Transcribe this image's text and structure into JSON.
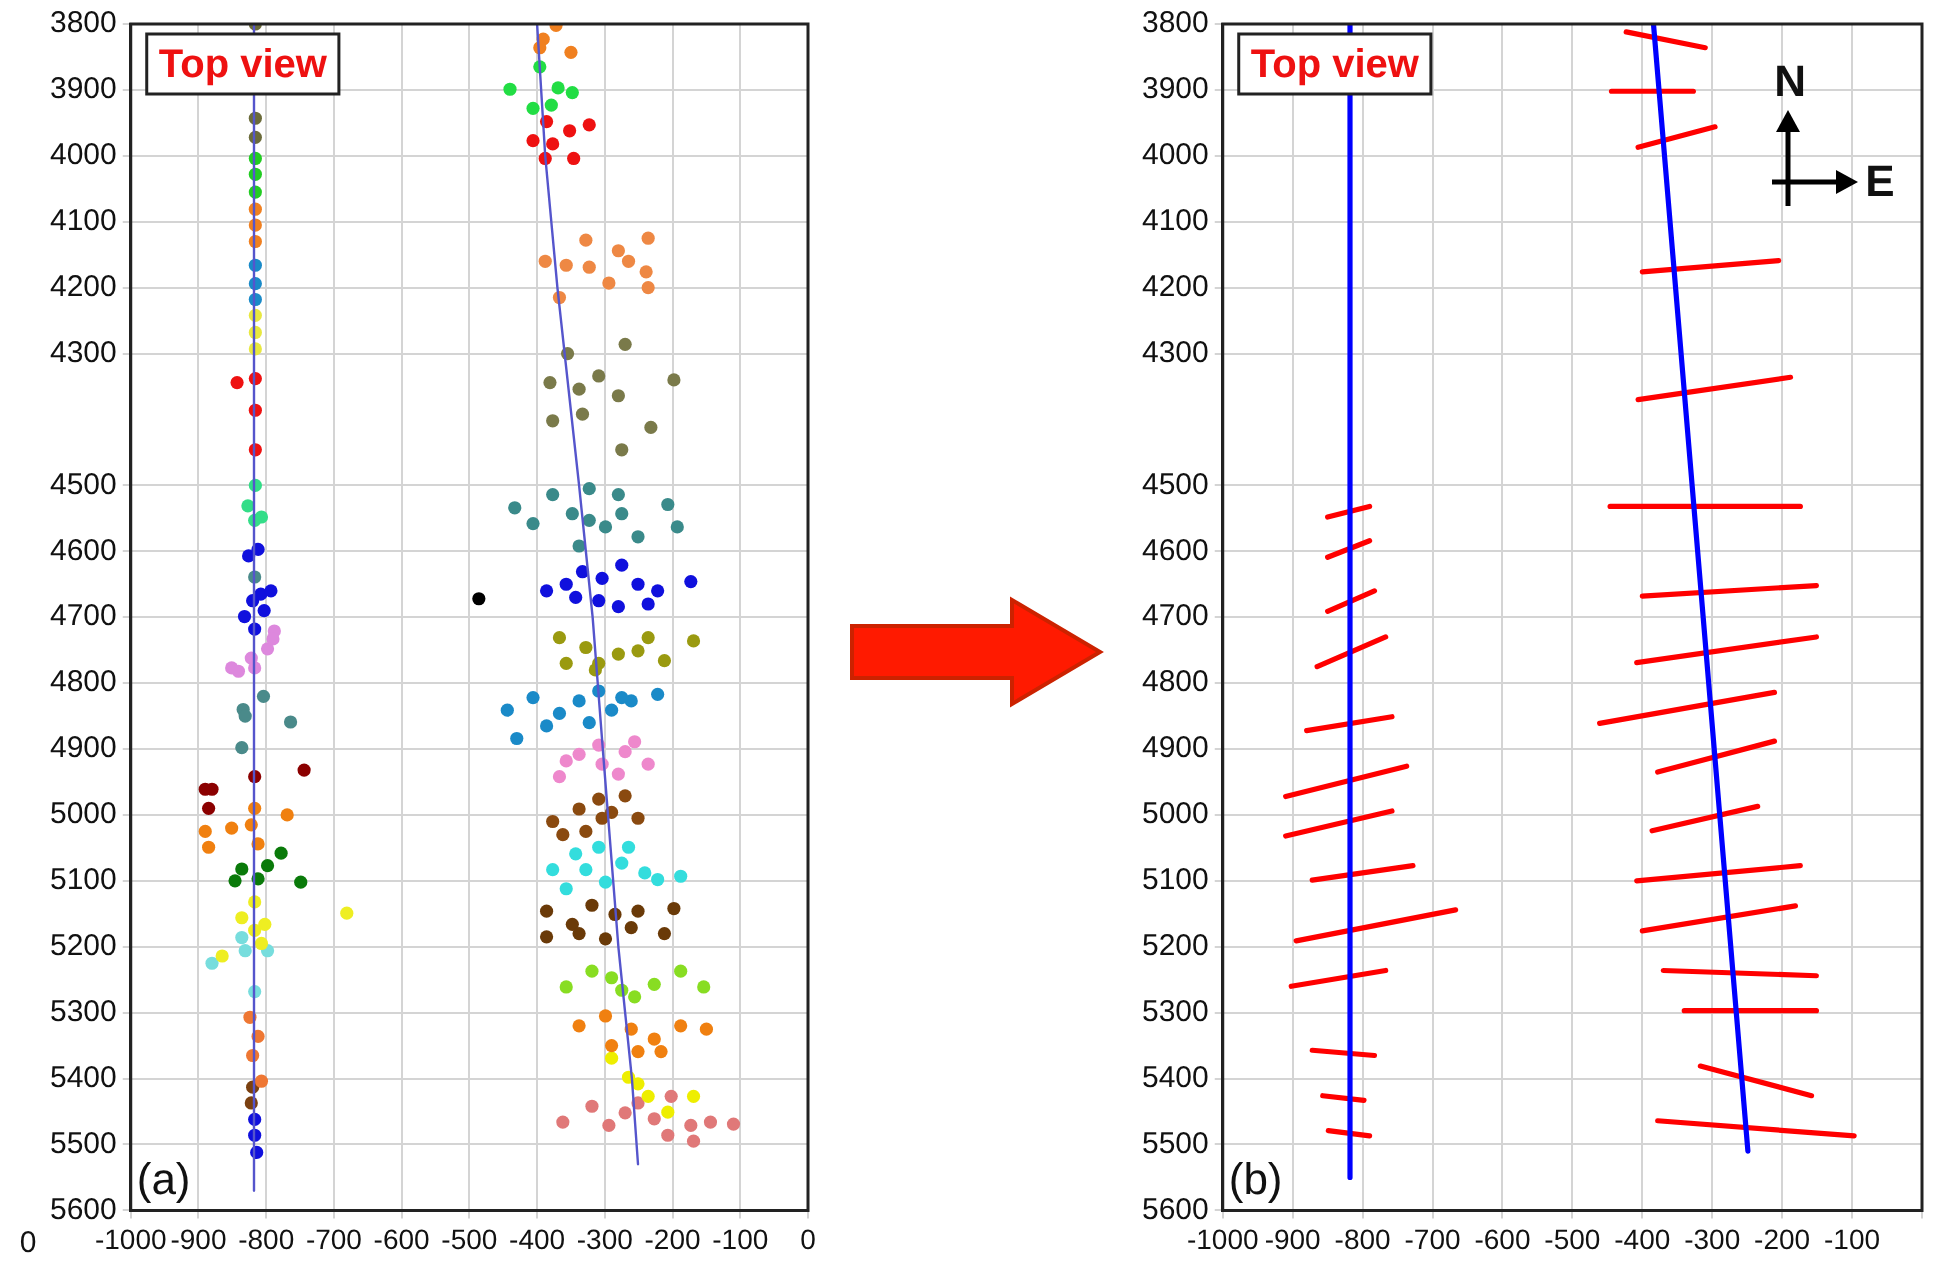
{
  "chart_data": [
    {
      "type": "scatter",
      "annotations": [
        "Top view",
        "(a)",
        "0"
      ],
      "xlim": [
        -1000,
        0
      ],
      "xticks": [
        -1000,
        -900,
        -800,
        -700,
        -600,
        -500,
        -400,
        -300,
        -200,
        -100,
        0
      ],
      "ylim": [
        5600,
        3800
      ],
      "yticks": [
        3800,
        3900,
        4000,
        4100,
        4200,
        4300,
        4500,
        4600,
        4700,
        4800,
        4900,
        5000,
        5100,
        5200,
        5300,
        5400,
        5500,
        5600
      ],
      "grid": true,
      "legend": false,
      "marker": "circle",
      "series": [
        {
          "type": "line",
          "marker": "none",
          "color": "#5555cc",
          "x": [
            -818,
            -818
          ],
          "values": [
            3800,
            5570
          ]
        },
        {
          "type": "line",
          "marker": "none",
          "color": "#5555cc",
          "x": [
            -400,
            -388,
            -370,
            -338,
            -318,
            -303,
            -280,
            -260,
            -251
          ],
          "values": [
            3800,
            4000,
            4200,
            4500,
            4700,
            4900,
            5200,
            5400,
            5530
          ]
        },
        {
          "color": "#6b6b3a",
          "x": [
            -816,
            -816,
            -816
          ],
          "values": [
            3800,
            3943,
            3972
          ]
        },
        {
          "color": "#22cc22",
          "x": [
            -816,
            -816,
            -816
          ],
          "values": [
            4004,
            4028,
            4055
          ]
        },
        {
          "color": "#f08020",
          "x": [
            -816,
            -816,
            -816
          ],
          "values": [
            4081,
            4105,
            4130
          ]
        },
        {
          "color": "#1a8ac8",
          "x": [
            -816,
            -816,
            -816
          ],
          "values": [
            4166,
            4194,
            4218
          ]
        },
        {
          "color": "#e8e840",
          "x": [
            -816,
            -816,
            -816
          ],
          "values": [
            4242,
            4268,
            4293
          ]
        },
        {
          "color": "#ee1111",
          "x": [
            -816,
            -816,
            -816,
            -843
          ],
          "values": [
            4338,
            4386,
            4446,
            4344
          ]
        },
        {
          "color": "#33dd88",
          "x": [
            -816,
            -827,
            -807,
            -817
          ],
          "values": [
            4500,
            4531,
            4548,
            4553
          ]
        },
        {
          "color": "#1010dd",
          "x": [
            -826,
            -812,
            -820,
            -808,
            -793,
            -832,
            -803,
            -817
          ],
          "values": [
            4607,
            4597,
            4675,
            4665,
            4660,
            4699,
            4690,
            4718
          ]
        },
        {
          "color": "#dd88dd",
          "x": [
            -788,
            -822,
            -851,
            -798,
            -817,
            -841,
            -790
          ],
          "values": [
            4721,
            4762,
            4777,
            4748,
            4777,
            4782,
            4733
          ]
        },
        {
          "color": "#4a8a8a",
          "x": [
            -834,
            -836,
            -804,
            -764,
            -831,
            -817
          ],
          "values": [
            4840,
            4898,
            4820,
            4859,
            4850,
            4639
          ]
        },
        {
          "color": "#8b0000",
          "x": [
            -890,
            -880,
            -885,
            -817,
            -744
          ],
          "values": [
            4961,
            4961,
            4990,
            4942,
            4932
          ]
        },
        {
          "color": "#f08010",
          "x": [
            -851,
            -890,
            -885,
            -822,
            -769,
            -812,
            -817
          ],
          "values": [
            5020,
            5025,
            5049,
            5015,
            5000,
            5044,
            4990
          ]
        },
        {
          "color": "#0a7a0a",
          "x": [
            -846,
            -812,
            -778,
            -749,
            -836,
            -798
          ],
          "values": [
            5100,
            5097,
            5058,
            5102,
            5082,
            5077
          ]
        },
        {
          "color": "#eeee22",
          "x": [
            -681,
            -817,
            -836,
            -817,
            -807,
            -865,
            -802
          ],
          "values": [
            5149,
            5132,
            5156,
            5175,
            5195,
            5214,
            5166
          ]
        },
        {
          "color": "#77dddd",
          "x": [
            -880,
            -831,
            -798,
            -817,
            -836
          ],
          "values": [
            5225,
            5206,
            5206,
            5268,
            5186
          ]
        },
        {
          "color": "#ee7733",
          "x": [
            -812,
            -820,
            -807,
            -824
          ],
          "values": [
            5336,
            5365,
            5404,
            5307
          ]
        },
        {
          "color": "#7a4010",
          "x": [
            -820,
            -822
          ],
          "values": [
            5413,
            5437
          ]
        },
        {
          "color": "#1010dd",
          "x": [
            -817,
            -817,
            -814
          ],
          "values": [
            5462,
            5486,
            5512
          ]
        },
        {
          "color": "#f08020",
          "x": [
            -372,
            -391,
            -350,
            -396
          ],
          "values": [
            3802,
            3823,
            3843,
            3836
          ]
        },
        {
          "color": "#22dd44",
          "x": [
            -440,
            -406,
            -369,
            -379,
            -396,
            -348
          ],
          "values": [
            3899,
            3928,
            3897,
            3923,
            3865,
            3904
          ]
        },
        {
          "color": "#ee1111",
          "x": [
            -377,
            -406,
            -352,
            -323,
            -386,
            -346,
            -388
          ],
          "values": [
            3982,
            3977,
            3962,
            3953,
            3948,
            4004,
            4004
          ]
        },
        {
          "color": "#ee8844",
          "x": [
            -357,
            -323,
            -280,
            -236,
            -367,
            -328,
            -388,
            -265,
            -239,
            -294,
            -236
          ],
          "values": [
            4166,
            4169,
            4144,
            4125,
            4215,
            4128,
            4160,
            4160,
            4176,
            4193,
            4200
          ]
        },
        {
          "color": "#7a7a4a",
          "x": [
            -355,
            -381,
            -338,
            -309,
            -275,
            -270,
            -198,
            -232,
            -377,
            -280,
            -333
          ],
          "values": [
            4300,
            4344,
            4354,
            4334,
            4446,
            4286,
            4340,
            4412,
            4402,
            4364,
            4392
          ]
        },
        {
          "color": "#3a8a8a",
          "x": [
            -433,
            -377,
            -348,
            -323,
            -299,
            -275,
            -338,
            -251,
            -207,
            -193,
            -406,
            -280,
            -323
          ],
          "values": [
            4534,
            4514,
            4543,
            4553,
            4563,
            4543,
            4592,
            4578,
            4529,
            4563,
            4558,
            4514,
            4505
          ]
        },
        {
          "color": "#1010dd",
          "x": [
            -386,
            -357,
            -333,
            -309,
            -275,
            -251,
            -222,
            -173,
            -280,
            -343,
            -304,
            -236
          ],
          "values": [
            4660,
            4650,
            4631,
            4675,
            4621,
            4650,
            4660,
            4646,
            4684,
            4670,
            4641,
            4680
          ]
        },
        {
          "color": "#000000",
          "x": [
            -486
          ],
          "values": [
            4672
          ]
        },
        {
          "color": "#9a9a10",
          "x": [
            -367,
            -328,
            -309,
            -280,
            -251,
            -212,
            -169,
            -357,
            -314,
            -236
          ],
          "values": [
            4731,
            4746,
            4770,
            4756,
            4751,
            4766,
            4736,
            4770,
            4780,
            4731
          ]
        },
        {
          "color": "#1a8ac8",
          "x": [
            -444,
            -406,
            -367,
            -338,
            -309,
            -290,
            -261,
            -222,
            -386,
            -323,
            -275,
            -430
          ],
          "values": [
            4841,
            4822,
            4846,
            4827,
            4812,
            4841,
            4827,
            4817,
            4865,
            4860,
            4822,
            4884
          ]
        },
        {
          "color": "#ee88cc",
          "x": [
            -367,
            -338,
            -309,
            -270,
            -236,
            -357,
            -304,
            -280,
            -256
          ],
          "values": [
            4942,
            4908,
            4894,
            4904,
            4923,
            4918,
            4923,
            4938,
            4889
          ]
        },
        {
          "color": "#8a4a10",
          "x": [
            -377,
            -338,
            -309,
            -290,
            -251,
            -362,
            -328,
            -270,
            -304
          ],
          "values": [
            5010,
            4991,
            4976,
            4996,
            5005,
            5030,
            5025,
            4971,
            5005
          ]
        },
        {
          "color": "#33dddd",
          "x": [
            -377,
            -343,
            -309,
            -275,
            -241,
            -188,
            -357,
            -299,
            -328,
            -265,
            -222
          ],
          "values": [
            5083,
            5059,
            5049,
            5073,
            5088,
            5093,
            5112,
            5102,
            5083,
            5049,
            5098
          ]
        },
        {
          "color": "#6a3a08",
          "x": [
            -386,
            -348,
            -319,
            -285,
            -251,
            -198,
            -386,
            -338,
            -299,
            -261,
            -212
          ],
          "values": [
            5146,
            5166,
            5137,
            5151,
            5146,
            5142,
            5185,
            5180,
            5188,
            5171,
            5180
          ]
        },
        {
          "color": "#88dd22",
          "x": [
            -357,
            -319,
            -290,
            -256,
            -227,
            -188,
            -275,
            -154
          ],
          "values": [
            5261,
            5237,
            5247,
            5276,
            5257,
            5237,
            5266,
            5261
          ]
        },
        {
          "color": "#f08010",
          "x": [
            -338,
            -299,
            -261,
            -227,
            -188,
            -150,
            -290,
            -251,
            -217
          ],
          "values": [
            5320,
            5305,
            5325,
            5340,
            5320,
            5325,
            5350,
            5359,
            5359
          ]
        },
        {
          "color": "#eeee00",
          "x": [
            -290,
            -265,
            -236,
            -207,
            -169,
            -251
          ],
          "values": [
            5369,
            5398,
            5427,
            5451,
            5427,
            5408
          ]
        },
        {
          "color": "#e07878",
          "x": [
            -362,
            -319,
            -294,
            -270,
            -251,
            -227,
            -207,
            -173,
            -144,
            -110,
            -169,
            -202
          ],
          "values": [
            5466,
            5442,
            5471,
            5452,
            5437,
            5461,
            5486,
            5471,
            5466,
            5469,
            5495,
            5427
          ]
        }
      ]
    },
    {
      "type": "line",
      "annotations": [
        "Top view",
        "(b)",
        "N",
        "E"
      ],
      "xlim": [
        -1000,
        0
      ],
      "xticks": [
        -1000,
        -900,
        -800,
        -700,
        -600,
        -500,
        -400,
        -300,
        -200,
        -100,
        {
          "value": 0,
          "label": null
        }
      ],
      "ylim": [
        5600,
        3800
      ],
      "yticks": [
        3800,
        3900,
        4000,
        4100,
        4200,
        4300,
        4500,
        4600,
        4700,
        4800,
        4900,
        5000,
        5100,
        5200,
        5300,
        5400,
        5500,
        5600
      ],
      "grid": true,
      "legend": false,
      "marker": "none",
      "series": [
        {
          "color": "#0000ff",
          "x": [
            -818,
            -818
          ],
          "values": [
            3800,
            5550
          ]
        },
        {
          "color": "#0000ff",
          "x": [
            -384,
            -249
          ],
          "values": [
            3800,
            5510
          ]
        },
        {
          "color": "#ff0000",
          "x": [
            -850,
            -790
          ],
          "values": [
            4548,
            4532
          ]
        },
        {
          "color": "#ff0000",
          "x": [
            -850,
            -790
          ],
          "values": [
            4609,
            4584
          ]
        },
        {
          "color": "#ff0000",
          "x": [
            -850,
            -783
          ],
          "values": [
            4691,
            4660
          ]
        },
        {
          "color": "#ff0000",
          "x": [
            -865,
            -767
          ],
          "values": [
            4775,
            4730
          ]
        },
        {
          "color": "#ff0000",
          "x": [
            -880,
            -758
          ],
          "values": [
            4872,
            4851
          ]
        },
        {
          "color": "#ff0000",
          "x": [
            -910,
            -737
          ],
          "values": [
            4972,
            4926
          ]
        },
        {
          "color": "#ff0000",
          "x": [
            -910,
            -758
          ],
          "values": [
            5032,
            4994
          ]
        },
        {
          "color": "#ff0000",
          "x": [
            -872,
            -728
          ],
          "values": [
            5099,
            5077
          ]
        },
        {
          "color": "#ff0000",
          "x": [
            -895,
            -667
          ],
          "values": [
            5191,
            5144
          ]
        },
        {
          "color": "#ff0000",
          "x": [
            -902,
            -767
          ],
          "values": [
            5260,
            5236
          ]
        },
        {
          "color": "#ff0000",
          "x": [
            -872,
            -783
          ],
          "values": [
            5357,
            5365
          ]
        },
        {
          "color": "#ff0000",
          "x": [
            -857,
            -798
          ],
          "values": [
            5426,
            5433
          ]
        },
        {
          "color": "#ff0000",
          "x": [
            -849,
            -790
          ],
          "values": [
            5479,
            5487
          ]
        },
        {
          "color": "#ff0000",
          "x": [
            -423,
            -310
          ],
          "values": [
            3812,
            3836
          ]
        },
        {
          "color": "#ff0000",
          "x": [
            -444,
            -327
          ],
          "values": [
            3902,
            3902
          ]
        },
        {
          "color": "#ff0000",
          "x": [
            -406,
            -296
          ],
          "values": [
            3987,
            3956
          ]
        },
        {
          "color": "#ff0000",
          "x": [
            -400,
            -205
          ],
          "values": [
            4176,
            4159
          ]
        },
        {
          "color": "#ff0000",
          "x": [
            -406,
            -188
          ],
          "values": [
            4370,
            4336
          ]
        },
        {
          "color": "#ff0000",
          "x": [
            -446,
            -174
          ],
          "values": [
            4532,
            4532
          ]
        },
        {
          "color": "#ff0000",
          "x": [
            -400,
            -151
          ],
          "values": [
            4668,
            4652
          ]
        },
        {
          "color": "#ff0000",
          "x": [
            -408,
            -151
          ],
          "values": [
            4769,
            4730
          ]
        },
        {
          "color": "#ff0000",
          "x": [
            -461,
            -211
          ],
          "values": [
            4861,
            4814
          ]
        },
        {
          "color": "#ff0000",
          "x": [
            -378,
            -211
          ],
          "values": [
            4935,
            4888
          ]
        },
        {
          "color": "#ff0000",
          "x": [
            -386,
            -235
          ],
          "values": [
            5024,
            4987
          ]
        },
        {
          "color": "#ff0000",
          "x": [
            -408,
            -174
          ],
          "values": [
            5100,
            5077
          ]
        },
        {
          "color": "#ff0000",
          "x": [
            -400,
            -181
          ],
          "values": [
            5176,
            5138
          ]
        },
        {
          "color": "#ff0000",
          "x": [
            -370,
            -151
          ],
          "values": [
            5236,
            5244
          ]
        },
        {
          "color": "#ff0000",
          "x": [
            -340,
            -151
          ],
          "values": [
            5297,
            5297
          ]
        },
        {
          "color": "#ff0000",
          "x": [
            -317,
            -158
          ],
          "values": [
            5381,
            5426
          ]
        },
        {
          "color": "#ff0000",
          "x": [
            -378,
            -97
          ],
          "values": [
            5464,
            5487
          ]
        }
      ]
    }
  ]
}
